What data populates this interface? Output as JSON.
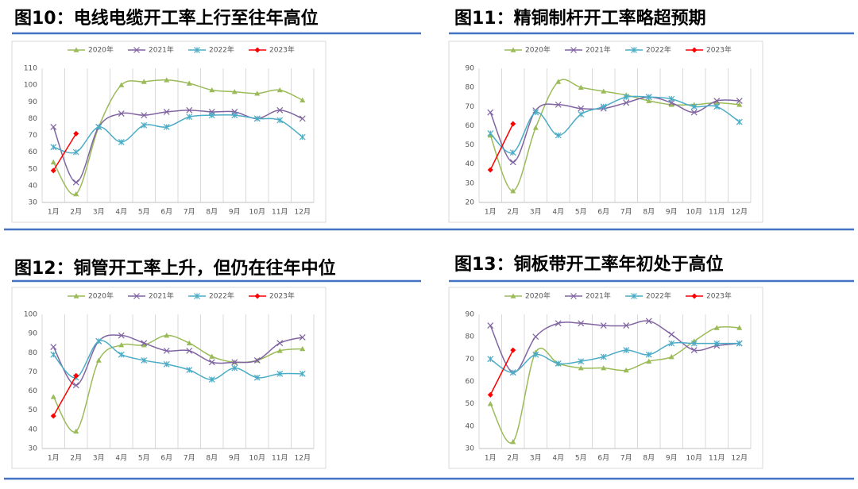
{
  "chart_data": [
    {
      "type": "line",
      "title": "图10：电线电缆开工率上行至往年高位",
      "categories": [
        "1月",
        "2月",
        "3月",
        "4月",
        "5月",
        "6月",
        "7月",
        "8月",
        "9月",
        "10月",
        "11月",
        "12月"
      ],
      "series": [
        {
          "name": "2020年",
          "color": "#9bbb59",
          "marker": "triangle",
          "values": [
            54,
            35,
            75,
            100,
            102,
            103,
            101,
            97,
            96,
            95,
            97,
            91
          ]
        },
        {
          "name": "2021年",
          "color": "#8064a2",
          "marker": "x",
          "values": [
            75,
            42,
            75,
            83,
            82,
            84,
            85,
            84,
            84,
            80,
            85,
            80
          ]
        },
        {
          "name": "2022年",
          "color": "#4bacc6",
          "marker": "star",
          "values": [
            63,
            60,
            75,
            66,
            76,
            75,
            81,
            82,
            82,
            80,
            79,
            69
          ]
        },
        {
          "name": "2023年",
          "color": "#ff0000",
          "marker": "diamond",
          "values": [
            49,
            71,
            null,
            null,
            null,
            null,
            null,
            null,
            null,
            null,
            null,
            null
          ]
        }
      ],
      "ylim": [
        30,
        110
      ],
      "yticks": [
        30,
        40,
        50,
        60,
        70,
        80,
        90,
        100,
        110
      ],
      "xgrid": true,
      "legend": "top"
    },
    {
      "type": "line",
      "title": "图11：精铜制杆开工率略超预期",
      "categories": [
        "1月",
        "2月",
        "3月",
        "4月",
        "5月",
        "6月",
        "7月",
        "8月",
        "9月",
        "10月",
        "11月",
        "12月"
      ],
      "series": [
        {
          "name": "2020年",
          "color": "#9bbb59",
          "marker": "triangle",
          "values": [
            55,
            26,
            59,
            83,
            80,
            78,
            76,
            73,
            71,
            71,
            72,
            71
          ]
        },
        {
          "name": "2021年",
          "color": "#8064a2",
          "marker": "x",
          "values": [
            67,
            41,
            68,
            71,
            69,
            69,
            72,
            75,
            72,
            67,
            73,
            73
          ]
        },
        {
          "name": "2022年",
          "color": "#4bacc6",
          "marker": "star",
          "values": [
            56,
            46,
            67,
            55,
            66,
            70,
            75,
            75,
            74,
            70,
            70,
            62
          ]
        },
        {
          "name": "2023年",
          "color": "#ff0000",
          "marker": "diamond",
          "values": [
            37,
            61,
            null,
            null,
            null,
            null,
            null,
            null,
            null,
            null,
            null,
            null
          ]
        }
      ],
      "ylim": [
        20,
        90
      ],
      "yticks": [
        20,
        30,
        40,
        50,
        60,
        70,
        80,
        90
      ],
      "xgrid": true,
      "legend": "top"
    },
    {
      "type": "line",
      "title": "图12：铜管开工率上升，但仍在往年中位",
      "categories": [
        "1月",
        "2月",
        "3月",
        "4月",
        "5月",
        "6月",
        "7月",
        "8月",
        "9月",
        "10月",
        "11月",
        "12月"
      ],
      "series": [
        {
          "name": "2020年",
          "color": "#9bbb59",
          "marker": "triangle",
          "values": [
            57,
            39,
            76,
            84,
            84,
            89,
            85,
            78,
            75,
            76,
            81,
            82
          ]
        },
        {
          "name": "2021年",
          "color": "#8064a2",
          "marker": "x",
          "values": [
            83,
            63,
            86,
            89,
            85,
            81,
            81,
            75,
            75,
            76,
            85,
            88
          ]
        },
        {
          "name": "2022年",
          "color": "#4bacc6",
          "marker": "star",
          "values": [
            79,
            67,
            86,
            79,
            76,
            74,
            71,
            66,
            72,
            67,
            69,
            69
          ]
        },
        {
          "name": "2023年",
          "color": "#ff0000",
          "marker": "diamond",
          "values": [
            47,
            68,
            null,
            null,
            null,
            null,
            null,
            null,
            null,
            null,
            null,
            null
          ]
        }
      ],
      "ylim": [
        30,
        100
      ],
      "yticks": [
        30,
        40,
        50,
        60,
        70,
        80,
        90,
        100
      ],
      "xgrid": true,
      "legend": "top"
    },
    {
      "type": "line",
      "title": "图13：铜板带开工率年初处于高位",
      "categories": [
        "1月",
        "2月",
        "3月",
        "4月",
        "5月",
        "6月",
        "7月",
        "8月",
        "9月",
        "10月",
        "11月",
        "12月"
      ],
      "series": [
        {
          "name": "2020年",
          "color": "#9bbb59",
          "marker": "triangle",
          "values": [
            50,
            33,
            73,
            68,
            66,
            66,
            65,
            69,
            71,
            78,
            84,
            84
          ]
        },
        {
          "name": "2021年",
          "color": "#8064a2",
          "marker": "x",
          "values": [
            85,
            64,
            80,
            86,
            86,
            85,
            85,
            87,
            81,
            74,
            76,
            77
          ]
        },
        {
          "name": "2022年",
          "color": "#4bacc6",
          "marker": "star",
          "values": [
            70,
            64,
            72,
            68,
            69,
            71,
            74,
            72,
            77,
            77,
            77,
            77
          ]
        },
        {
          "name": "2023年",
          "color": "#ff0000",
          "marker": "diamond",
          "values": [
            54,
            74,
            null,
            null,
            null,
            null,
            null,
            null,
            null,
            null,
            null,
            null
          ]
        }
      ],
      "ylim": [
        30,
        90
      ],
      "yticks": [
        30,
        40,
        50,
        60,
        70,
        80,
        90
      ],
      "xgrid": true,
      "legend": "top"
    }
  ]
}
